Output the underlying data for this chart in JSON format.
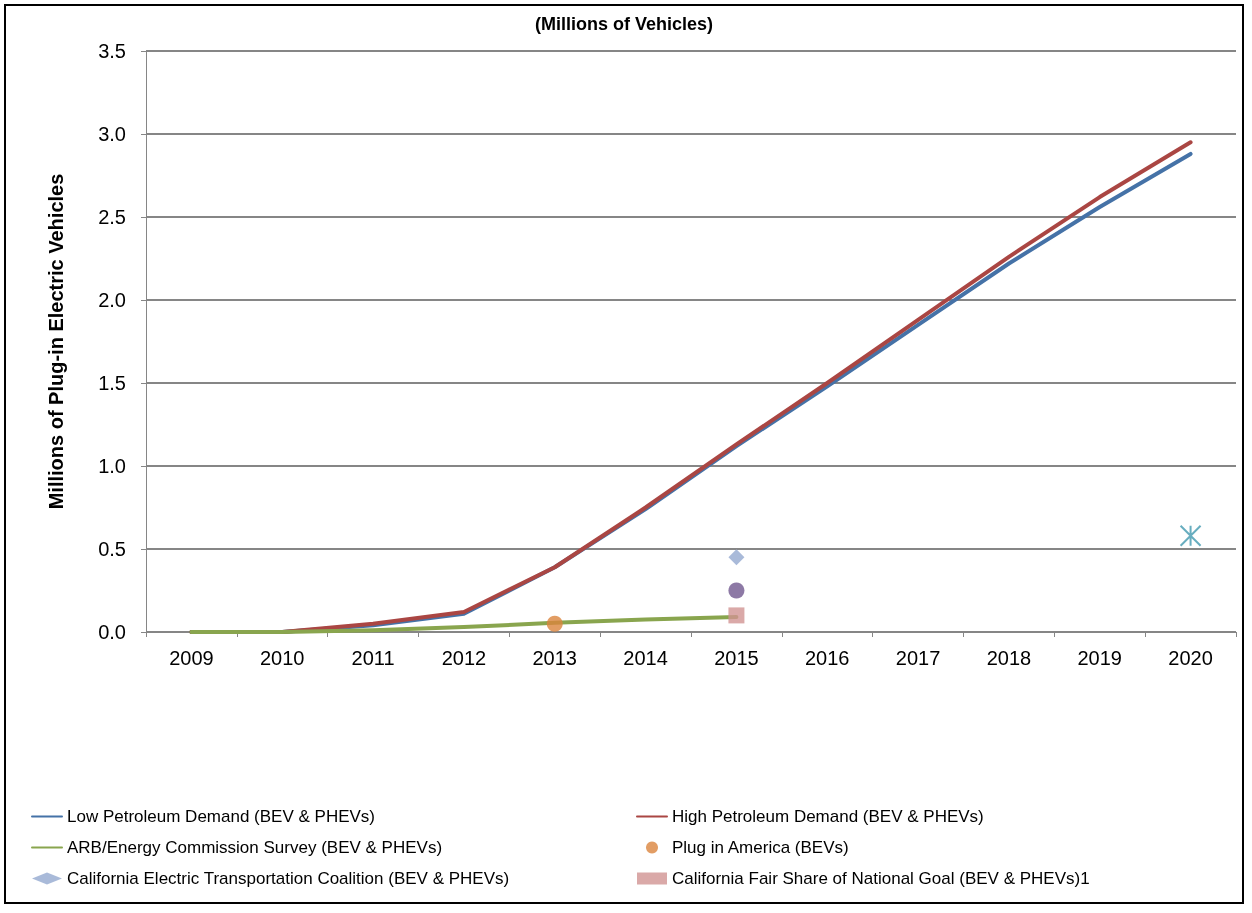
{
  "chart_data": {
    "type": "line",
    "title": "(Millions of Vehicles)",
    "ylabel": "Millions of Plug-in Electric Vehicles",
    "categories": [
      "2009",
      "2010",
      "2011",
      "2012",
      "2013",
      "2014",
      "2015",
      "2016",
      "2017",
      "2018",
      "2019",
      "2020"
    ],
    "ylim": [
      0,
      3.5
    ],
    "yticks": [
      {
        "value": 0,
        "label": "0.0"
      },
      {
        "value": 0.5,
        "label": "0.5"
      },
      {
        "value": 1,
        "label": "1.0"
      },
      {
        "value": 1.5,
        "label": "1.5"
      },
      {
        "value": 2,
        "label": "2.0"
      },
      {
        "value": 2.5,
        "label": "2.5"
      },
      {
        "value": 3,
        "label": "3.0"
      },
      {
        "value": 3.5,
        "label": "3.5"
      }
    ],
    "grid": "y",
    "legend": "bottom",
    "marker": "none",
    "line_style": "solid",
    "series": [
      {
        "name": "Low Petroleum Demand (BEV & PHEVs)",
        "color": "#4572a7",
        "values": [
          0,
          0,
          0.04,
          0.11,
          0.39,
          0.74,
          1.12,
          1.48,
          1.85,
          2.22,
          2.56,
          2.88
        ]
      },
      {
        "name": "High Petroleum Demand (BEV & PHEVs)",
        "color": "#aa4643",
        "values": [
          0,
          0,
          0.05,
          0.12,
          0.39,
          0.75,
          1.13,
          1.5,
          1.88,
          2.26,
          2.62,
          2.95
        ]
      },
      {
        "name": "ARB/Energy Commission Survey (BEV & PHEVs)",
        "color": "#89a54e",
        "values": [
          0,
          0,
          0.01,
          0.03,
          0.055,
          0.075,
          0.09,
          null,
          null,
          null,
          null,
          null
        ]
      },
      {
        "type": "scatter",
        "marker": "circle",
        "color": "#71588f",
        "values": [
          null,
          null,
          null,
          null,
          null,
          null,
          0.25,
          null,
          null,
          null,
          null,
          null
        ]
      },
      {
        "type": "scatter",
        "marker": "cross",
        "color": "#4198af",
        "values": [
          null,
          null,
          null,
          null,
          null,
          null,
          null,
          null,
          null,
          null,
          null,
          0.58
        ]
      },
      {
        "type": "scatter",
        "marker": "circle",
        "name": "Plug in America (BEVs)",
        "color": "#db843d",
        "values": [
          null,
          null,
          null,
          null,
          0.05,
          null,
          null,
          null,
          null,
          null,
          null,
          null
        ]
      },
      {
        "type": "scatter",
        "marker": "diamond",
        "name": "California Electric Transportation Coalition (BEV & PHEVs)",
        "color": "#93a9cf",
        "values": [
          null,
          null,
          null,
          null,
          null,
          null,
          0.45,
          null,
          null,
          null,
          null,
          null
        ]
      },
      {
        "type": "scatter",
        "marker": "square",
        "name": "California Fair Share of National Goal (BEV & PHEVs)1",
        "color": "#d19392",
        "values": [
          null,
          null,
          null,
          null,
          null,
          null,
          0.1,
          null,
          null,
          null,
          null,
          null
        ]
      }
    ]
  }
}
